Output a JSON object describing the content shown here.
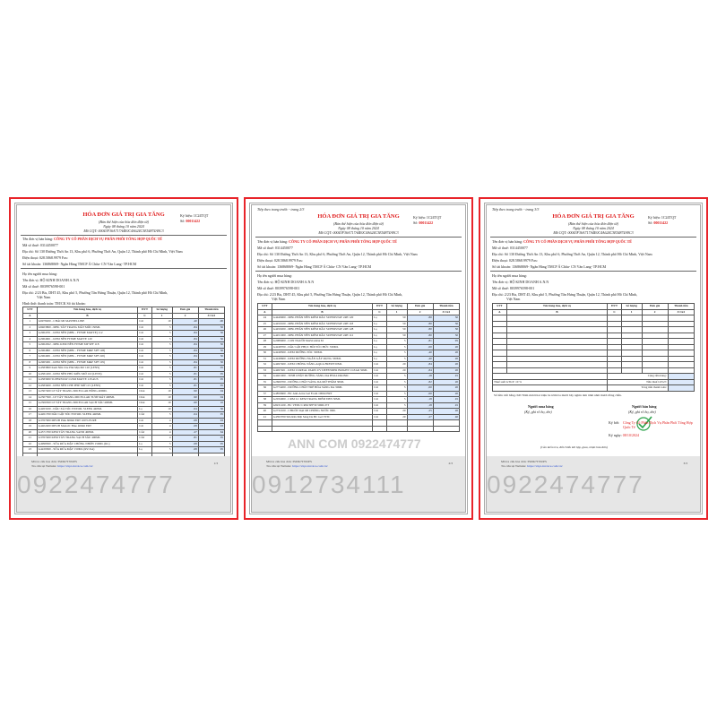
{
  "common": {
    "title": "HÓA ĐƠN GIÁ TRỊ GIA TĂNG",
    "subtitle": "(Bản thể hiện của hóa đơn điện tử)",
    "date_line": "Ngày 08 tháng 10 năm 2024",
    "mcqt": "Mã CQT: 00043F36A717A4E0C4A624C3E54874A9C3",
    "symbol": "Ký hiệu: 1C24TQT",
    "number_label": "Số:",
    "number": "00011422",
    "seller_label": "Tên đơn vị bán hàng:",
    "seller": "CÔNG TY CỔ PHẦN DỊCH VỤ PHÂN PHỐI TỔNG HỢP QUỐC TẾ",
    "seller_tax": "Mã số thuế: 0314450077",
    "seller_addr": "Địa chỉ: Số 130 Đường Thới An 13, Khu phố 6, Phường Thới An, Quận 12, Thành phố Hồ Chí Minh, Việt Nam",
    "seller_phone": "Điện thoại: 028.5868.9979          Fax:",
    "seller_bank": "Số tài khoản: 136868069- Ngân Hàng TMCP Á Châu- CN Văn Lang- TP.HCM",
    "buyer_head": "Họ tên người mua hàng:",
    "buyer": "Tên đơn vị: HỘ KINH DOANH A.N.N",
    "buyer_tax": "Mã số thuế: 8039976598-001",
    "buyer_addr": "Địa chỉ: 2/23 Bis, DHT 45, Khu phố 5, Phường Tân Hưng Thuận, Quận 12, Thành phố Hồ Chí Minh,",
    "buyer_addr2": "Việt Nam",
    "payment": "Hình thức thanh toán: TM/CK          Số tài khoản:",
    "cols": [
      "STT",
      "Tên hàng hóa, dịch vụ",
      "ĐVT",
      "Số lượng",
      "Đơn giá",
      "Thành tiền"
    ],
    "col_codes": [
      "A",
      "B",
      "C",
      "1",
      "2",
      "3=1x2"
    ],
    "footer_code": "Mã tra cứu hóa đơn: 3SDK7TNUPS",
    "footer_site": "Tra cứu tại Website:",
    "footer_url": "https://vnpt-invoice.com.vn/",
    "continued": "Tiếp theo trang trước - trang"
  },
  "pages": [
    {
      "page_no": "1/3",
      "watermark": "0922474777",
      "items": [
        [
          "1",
          "G6978200 - CHẢI MI MAYBELLINE",
          "Cái",
          "10",
          ".40",
          ".00"
        ],
        [
          "2",
          "G8403800 - MBL TẨY TRANG MẮT MÔI 150ML",
          "Cái",
          "5",
          ".84",
          "50"
        ],
        [
          "3",
          "G2964701 - KEM NỀN (MBL - FITME MATTE) 112",
          "Cái",
          "5",
          ".84",
          "50"
        ],
        [
          "4",
          "G2964601 - KEM NỀN FITME MATTE 120",
          "Cái",
          "5",
          ".84",
          "50"
        ],
        [
          "5",
          "G2964502 - MBL KEM NỀN FITME MP SPF 118",
          "Cái",
          "5",
          ".84",
          "50"
        ],
        [
          "6",
          "G2964801 - KEM NỀN (MBL - FITME M&P SPF 128)",
          "Cái",
          "5",
          ".84",
          "50"
        ],
        [
          "7",
          "G2964901 - KEM NỀN (MBL - FITME M&P SPF 220)",
          "Cái",
          "5",
          ".84",
          "50"
        ],
        [
          "8",
          "G2965001 - KEM NỀN (MBL - FITME M&P SPF 105)",
          "Cái",
          "5",
          ".84",
          "50"
        ],
        [
          "9",
          "G4583800 Kem Nền Che Phủ Mịn Mờ 120 (LENS)",
          "Cái",
          "5",
          ".81",
          "05"
        ],
        [
          "10",
          "G4581200 - KEM NỀN PHỦ KIỀU MỜ 110 (LENS)",
          "Cái",
          "5",
          ".81",
          "05"
        ],
        [
          "11",
          "G4583900 SUPERSTAY LUMI MATTE 118 AUS",
          "Cái",
          "5",
          ".81",
          "05"
        ],
        [
          "12",
          "G4583400 - KEM NỀN CHE PHỦ MỜ 115 (LENS)",
          "Cái",
          "5",
          ".81",
          "05"
        ],
        [
          "13",
          "G2307400 LP TẨY TRANG MICELLAR HỒNG 400ML",
          "Chai",
          "10",
          ".90",
          "04"
        ],
        [
          "14",
          "G2307500 - LP TẨY TRANG MICELLAR TƯƠI MÁT 400ML",
          "Chai",
          "10",
          ".90",
          "04"
        ],
        [
          "15",
          "G2306500 LP TẨY TRANG MICELLAR SẠCH SÂU 400ML",
          "Chai",
          "10",
          ".60",
          "10"
        ],
        [
          "16",
          "G4263100 - DẦU XẢ TÓC EXTOIL SLEEK 440ML",
          "Lọ",
          "10",
          ".04",
          "30"
        ],
        [
          "17",
          "G4261700 DẦU GỘI TÓC EXTOIL SLEEK 440ML",
          "CÁI",
          "5",
          ".04",
          "05"
        ],
        [
          "18",
          "G3767900 MEUB Pink 600ml ERT 100% PURE",
          "Cái",
          "4",
          ".08",
          "93"
        ],
        [
          "19",
          "G4402400 MEUB MAGIC Blue 400ml ERT",
          "Cái",
          "4",
          ".08",
          "93"
        ],
        [
          "20",
          "G4571700 KEM TẨY TRANG SAND 400ML",
          "CÁI",
          "4",
          ".27",
          "64"
        ],
        [
          "21",
          "G3767400 KEM TẨY TRANG SẠCH SÂU 400ML",
          "CÁI",
          "4",
          ".81",
          "05"
        ],
        [
          "22",
          "G4998300 - SỮA RỬA MẶT CHỐNG NHỜN 150ML (RL)",
          "Lọ",
          "5",
          ".08",
          "95"
        ],
        [
          "23",
          "G4229300 - SỮA RỬA MẶT 150ML (RV-XA)",
          "Lọ",
          "5",
          ".08",
          "95"
        ]
      ]
    },
    {
      "page_no": "2/3",
      "watermark": "0912734111",
      "continued_page": "2/3",
      "diag_watermark": "ANN COM 0922474777",
      "items": [
        [
          "24",
          "G4449900 - MBL PHẤN NỀN KIỀM DẦU SUPERSTAY 24H 120",
          "Lọ",
          "50",
          ".80",
          "50"
        ],
        [
          "25",
          "G4450100 - MBL PHẤN NỀN KIỀM DẦU SUPERSTAY 24H 118",
          "Lọ",
          "50",
          ".80",
          "50"
        ],
        [
          "26",
          "G4450200 - MBL PHẤN NỀN KIỀM DẦU SUPERSTAY 24H 128",
          "Lọ",
          "50",
          ".80",
          "50"
        ],
        [
          "27",
          "G4451000 - MBL PHẤN NỀN KIỀM DẦU SUPERSTAY 24H 112",
          "Lọ",
          "50",
          ".80",
          "50"
        ],
        [
          "28",
          "G2089900 - CON NGƯỜI MASCARA M",
          "Lọ",
          "5",
          ",81",
          "95"
        ],
        [
          "29",
          "G4248700 - DẦU GỘI PHỤC HỒI TỔ CHỨC 330ML",
          "Lọ",
          "5",
          ",00",
          "20"
        ],
        [
          "30",
          "G4248500 - KEM DƯỠNG TÓC 330ML",
          "Lọ",
          "5",
          ",40",
          "20"
        ],
        [
          "31",
          "G4248600 - KEM DƯỠNG NGĂN GÃY RỤNG 330ML",
          "Lọ",
          "5",
          ",40",
          "20"
        ],
        [
          "32",
          "G4497400 - KEM CHỐNG NẮNG AQUA FRESH 50ML",
          "Cái",
          "20",
          ",84",
          "20"
        ],
        [
          "33",
          "G4497401 - KEM L'OREAL PARIS UV DEFENDER BRIGHT CLEAR 50ML",
          "Cái",
          "20",
          ",84",
          "20"
        ],
        [
          "34",
          "G4461000 - TINH CHẤT DƯỠNG SÁNG DA HYALURONIC",
          "Cái",
          "5",
          ",18",
          "45"
        ],
        [
          "35",
          "G2666700 - DƯỠNG CHẤT SÁNG DA MỜ THÂM 30ML",
          "Cái",
          "5",
          ".82",
          "20"
        ],
        [
          "36",
          "G2774200 - DƯỠNG CHẤT TRẺ HÓA SÁNG DA 30ML",
          "Cái",
          "5",
          ",00",
          "20"
        ],
        [
          "37",
          "G4859600 - BC Anti-Acne Gel Foam 100ml ERT",
          "Cái",
          "5",
          ",00",
          "20"
        ],
        [
          "38",
          "G2034000 - CRM LC KEM TRANG ĐIỂM ĐEN 50ML",
          "Cái",
          "5",
          ",18",
          "45"
        ],
        [
          "39",
          "G8231100 - BC VEJIU CRM SPF30 50ML ET",
          "Cái",
          "5",
          ",18",
          "45"
        ],
        [
          "40",
          "G2732100 - CHUỐT DẠI MI CHÓNG NƯỚC 9ML",
          "Cái",
          "20",
          ",25",
          "20"
        ],
        [
          "41",
          "G4393700 Sữa Rửa Mặt Sáng Da BC Gel VITC",
          "Cái",
          "20",
          ",27",
          "40"
        ]
      ]
    },
    {
      "page_no": "3/3",
      "watermark": "0922474777",
      "continued_page": "3/3",
      "totals": [
        {
          "label": "Cộng tiền hàng:",
          "value": ""
        },
        {
          "label": "Tiền thuế GTGT:",
          "value": ""
        },
        {
          "label": "Tổng tiền thanh toán:",
          "value": ""
        }
      ],
      "vat_label": "Thuế suất GTGT:",
      "vat_value": "10 %",
      "amount_words": "Số tiền viết bằng chữ: Năm mươi hai triệu ba trăm ba mươi bảy nghìn tám trăm năm mươi đồng chẵn.",
      "buyer_sign": "Người mua hàng",
      "seller_sign": "Người bán hàng",
      "sign_note": "(Ký, ghi rõ họ, tên)",
      "signed_by_label": "Ký bởi:",
      "signed_by": "Công Ty Cổ Phần Dịch Vụ Phân Phối Tổng Hợp Quốc Tế",
      "signed_date_label": "Ký ngày:",
      "signed_date": "08/10/2024",
      "check_note": "(Cần kiểm tra, đối chiếu khi lập, giao, nhận hóa đơn)",
      "signature_check_color": "#2aa24a"
    }
  ],
  "colors": {
    "frame": "#e8242a",
    "title": "#e02020",
    "highlight": "#dce9fb"
  }
}
